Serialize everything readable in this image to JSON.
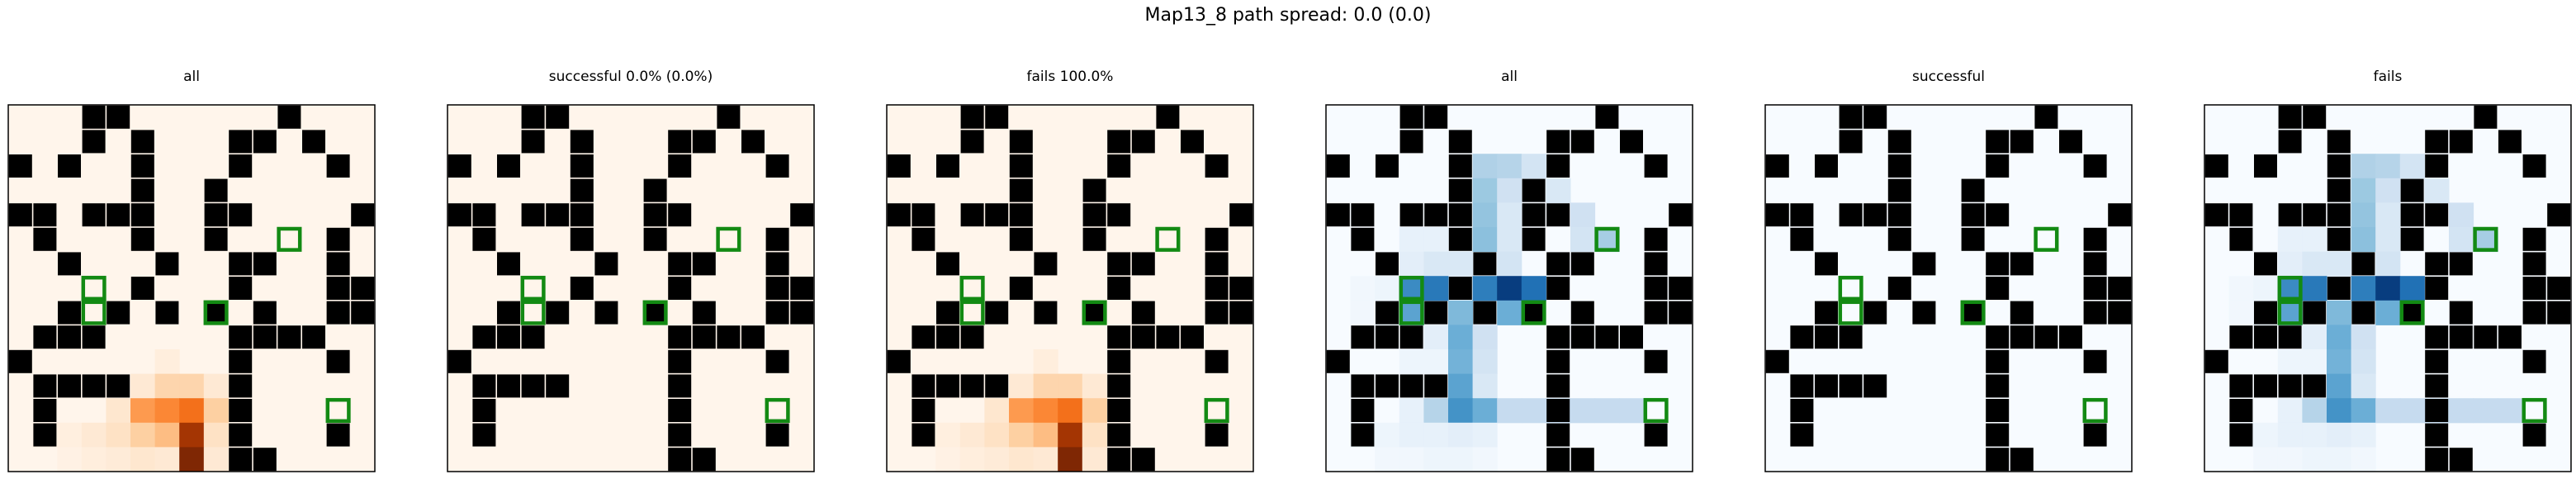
{
  "figure": {
    "suptitle": "Map13_8 path spread: 0.0 (0.0)"
  },
  "chart_data": [
    {
      "type": "heatmap",
      "title": "all",
      "colormap": "Oranges",
      "grid_size": 15,
      "obstacles": "map.obstacles",
      "goals": "map.goals",
      "cells": "heat.all_orange"
    },
    {
      "type": "heatmap",
      "title": "successful 0.0% (0.0%)",
      "colormap": "Oranges",
      "grid_size": 15,
      "obstacles": "map.obstacles",
      "goals": "map.goals",
      "cells": []
    },
    {
      "type": "heatmap",
      "title": "fails 100.0%",
      "colormap": "Oranges",
      "grid_size": 15,
      "obstacles": "map.obstacles",
      "goals": "map.goals",
      "cells": "heat.all_orange"
    },
    {
      "type": "heatmap",
      "title": "all",
      "colormap": "Blues",
      "grid_size": 15,
      "obstacles": "map.obstacles",
      "goals": "map.goals",
      "cells": "heat.all_blue"
    },
    {
      "type": "heatmap",
      "title": "successful",
      "colormap": "Blues",
      "grid_size": 15,
      "obstacles": "map.obstacles",
      "goals": "map.goals",
      "cells": []
    },
    {
      "type": "heatmap",
      "title": "fails",
      "colormap": "Blues",
      "grid_size": 15,
      "obstacles": "map.obstacles",
      "goals": "map.goals",
      "cells": "heat.all_blue"
    }
  ],
  "map": {
    "obstacles": [
      [
        3,
        0
      ],
      [
        4,
        0
      ],
      [
        11,
        0
      ],
      [
        3,
        1
      ],
      [
        5,
        1
      ],
      [
        9,
        1
      ],
      [
        10,
        1
      ],
      [
        12,
        1
      ],
      [
        0,
        2
      ],
      [
        2,
        2
      ],
      [
        5,
        2
      ],
      [
        9,
        2
      ],
      [
        13,
        2
      ],
      [
        5,
        3
      ],
      [
        8,
        3
      ],
      [
        0,
        4
      ],
      [
        1,
        4
      ],
      [
        3,
        4
      ],
      [
        4,
        4
      ],
      [
        5,
        4
      ],
      [
        8,
        4
      ],
      [
        9,
        4
      ],
      [
        14,
        4
      ],
      [
        1,
        5
      ],
      [
        5,
        5
      ],
      [
        8,
        5
      ],
      [
        13,
        5
      ],
      [
        2,
        6
      ],
      [
        6,
        6
      ],
      [
        9,
        6
      ],
      [
        10,
        6
      ],
      [
        13,
        6
      ],
      [
        5,
        7
      ],
      [
        9,
        7
      ],
      [
        13,
        7
      ],
      [
        14,
        7
      ],
      [
        2,
        8
      ],
      [
        4,
        8
      ],
      [
        6,
        8
      ],
      [
        8,
        8
      ],
      [
        10,
        8
      ],
      [
        13,
        8
      ],
      [
        14,
        8
      ],
      [
        1,
        9
      ],
      [
        2,
        9
      ],
      [
        3,
        9
      ],
      [
        9,
        9
      ],
      [
        10,
        9
      ],
      [
        11,
        9
      ],
      [
        12,
        9
      ],
      [
        0,
        10
      ],
      [
        9,
        10
      ],
      [
        13,
        10
      ],
      [
        1,
        11
      ],
      [
        2,
        11
      ],
      [
        3,
        11
      ],
      [
        4,
        11
      ],
      [
        9,
        11
      ],
      [
        1,
        12
      ],
      [
        9,
        12
      ],
      [
        1,
        13
      ],
      [
        9,
        13
      ],
      [
        13,
        13
      ],
      [
        9,
        14
      ],
      [
        10,
        14
      ]
    ],
    "goals": [
      [
        11,
        5
      ],
      [
        3,
        7
      ],
      [
        3,
        8
      ],
      [
        8,
        8
      ],
      [
        13,
        12
      ]
    ]
  },
  "heat": {
    "all_orange": [
      [
        6,
        10,
        0.06
      ],
      [
        5,
        11,
        0.1
      ],
      [
        6,
        11,
        0.22
      ],
      [
        7,
        11,
        0.22
      ],
      [
        8,
        11,
        0.1
      ],
      [
        4,
        12,
        0.12
      ],
      [
        5,
        12,
        0.45
      ],
      [
        6,
        12,
        0.52
      ],
      [
        7,
        12,
        0.6
      ],
      [
        8,
        12,
        0.25
      ],
      [
        1,
        13,
        0.03
      ],
      [
        2,
        13,
        0.05
      ],
      [
        3,
        13,
        0.1
      ],
      [
        4,
        13,
        0.15
      ],
      [
        5,
        13,
        0.25
      ],
      [
        6,
        13,
        0.32
      ],
      [
        7,
        13,
        0.88
      ],
      [
        8,
        13,
        0.15
      ],
      [
        2,
        14,
        0.03
      ],
      [
        3,
        14,
        0.06
      ],
      [
        4,
        14,
        0.08
      ],
      [
        5,
        14,
        0.12
      ],
      [
        6,
        14,
        0.1
      ],
      [
        7,
        14,
        1.0
      ],
      [
        8,
        14,
        0.1
      ]
    ],
    "all_blue": [
      [
        6,
        2,
        0.32
      ],
      [
        7,
        2,
        0.3
      ],
      [
        8,
        2,
        0.18
      ],
      [
        6,
        3,
        0.38
      ],
      [
        7,
        3,
        0.2
      ],
      [
        9,
        3,
        0.15
      ],
      [
        6,
        4,
        0.4
      ],
      [
        7,
        4,
        0.15
      ],
      [
        10,
        4,
        0.2
      ],
      [
        3,
        5,
        0.08
      ],
      [
        4,
        5,
        0.08
      ],
      [
        6,
        5,
        0.42
      ],
      [
        7,
        5,
        0.15
      ],
      [
        10,
        5,
        0.18
      ],
      [
        11,
        5,
        0.35
      ],
      [
        3,
        6,
        0.1
      ],
      [
        4,
        6,
        0.15
      ],
      [
        5,
        6,
        0.15
      ],
      [
        7,
        6,
        0.18
      ],
      [
        1,
        7,
        0.03
      ],
      [
        2,
        7,
        0.05
      ],
      [
        3,
        7,
        0.65
      ],
      [
        4,
        7,
        0.72
      ],
      [
        6,
        7,
        0.7
      ],
      [
        7,
        7,
        0.95
      ],
      [
        8,
        7,
        0.75
      ],
      [
        1,
        8,
        0.03
      ],
      [
        2,
        8,
        0.05
      ],
      [
        3,
        8,
        0.55
      ],
      [
        5,
        8,
        0.45
      ],
      [
        7,
        8,
        0.5
      ],
      [
        4,
        9,
        0.1
      ],
      [
        5,
        9,
        0.5
      ],
      [
        6,
        9,
        0.2
      ],
      [
        3,
        10,
        0.05
      ],
      [
        4,
        10,
        0.05
      ],
      [
        5,
        10,
        0.48
      ],
      [
        6,
        10,
        0.18
      ],
      [
        5,
        11,
        0.55
      ],
      [
        6,
        11,
        0.15
      ],
      [
        3,
        12,
        0.08
      ],
      [
        4,
        12,
        0.3
      ],
      [
        5,
        12,
        0.62
      ],
      [
        6,
        12,
        0.5
      ],
      [
        7,
        12,
        0.25
      ],
      [
        8,
        12,
        0.25
      ],
      [
        9,
        12,
        0.25
      ],
      [
        10,
        12,
        0.25
      ],
      [
        11,
        12,
        0.25
      ],
      [
        12,
        12,
        0.25
      ],
      [
        1,
        13,
        0.05
      ],
      [
        2,
        13,
        0.05
      ],
      [
        3,
        13,
        0.08
      ],
      [
        4,
        13,
        0.08
      ],
      [
        5,
        13,
        0.1
      ],
      [
        6,
        13,
        0.08
      ],
      [
        2,
        14,
        0.03
      ],
      [
        3,
        14,
        0.03
      ],
      [
        4,
        14,
        0.05
      ],
      [
        5,
        14,
        0.05
      ],
      [
        6,
        14,
        0.03
      ]
    ]
  }
}
